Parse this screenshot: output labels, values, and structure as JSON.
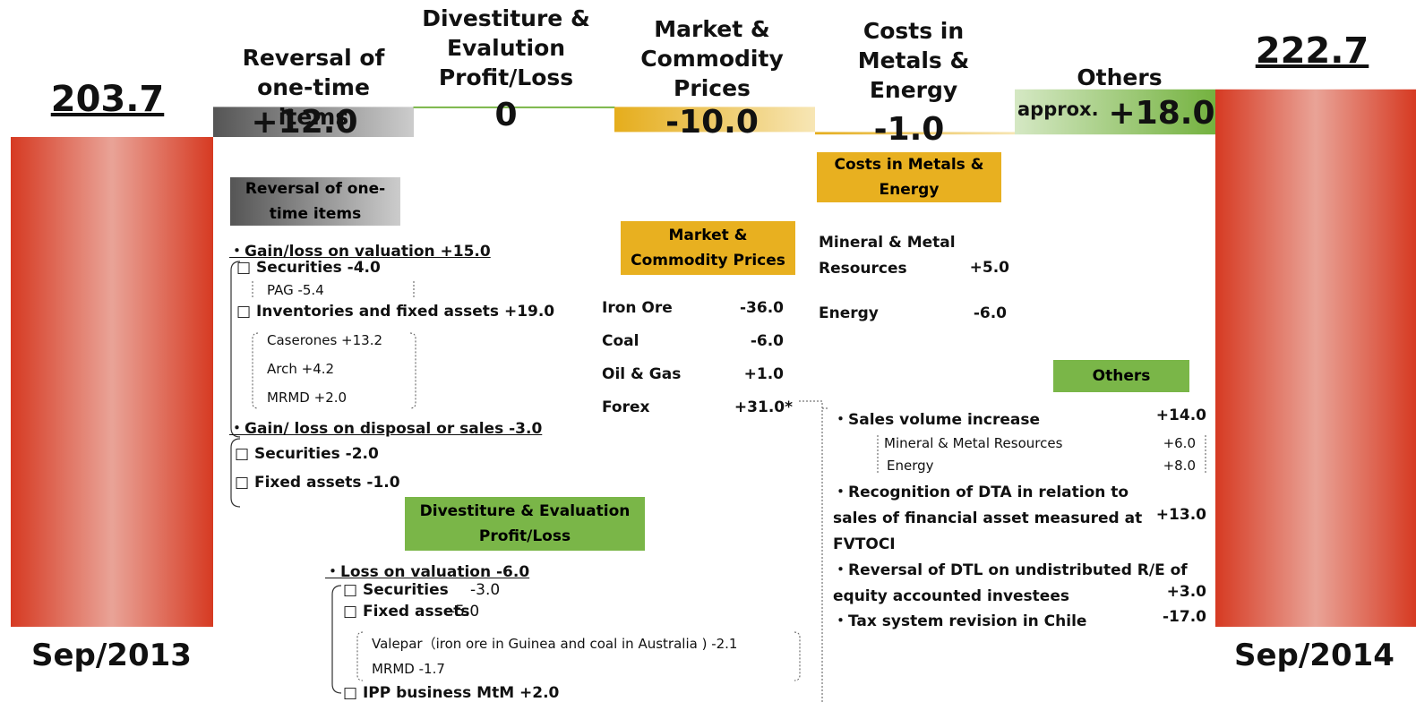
{
  "chart_data": {
    "type": "waterfall",
    "categories": [
      "Sep/2013",
      "Reversal of one-time items",
      "Divestiture & Evalution Profit/Loss",
      "Market & Commodity Prices",
      "Costs in Metals & Energy",
      "Others",
      "Sep/2014"
    ],
    "values": [
      203.7,
      12.0,
      0,
      -10.0,
      -1.0,
      18.0,
      222.7
    ],
    "value_labels": [
      "203.7",
      "+12.0",
      "0",
      "-10.0",
      "-1.0",
      "+18.0",
      "222.7"
    ],
    "value_prefix_others": "approx.",
    "colors": [
      "#d63a22",
      "#6b6b6b",
      "#7ab648",
      "#e8b020",
      "#e8b020",
      "#7ab648",
      "#d63a22"
    ]
  },
  "reversal": {
    "heading": "Reversal of one-time items",
    "lines": [
      "・Gain/loss on valuation +15.0",
      "□ Securities -4.0",
      "PAG  -5.4",
      "□ Inventories and fixed assets  +19.0",
      "Caserones  +13.2",
      "Arch  +4.2",
      "MRMD +2.0",
      "・Gain/ loss on disposal or sales -3.0",
      "□ Securities -2.0",
      "□ Fixed assets  -1.0"
    ]
  },
  "divestiture": {
    "heading": "Divestiture & Evaluation Profit/Loss",
    "lines": [
      "・Loss on valuation -6.0",
      "□ Securities",
      "-3.0",
      "□ Fixed assets",
      "-5.0",
      "Valepar（iron ore in Guinea and coal in Australia ) -2.1",
      "MRMD -1.7",
      "□ IPP business MtM  +2.0"
    ]
  },
  "market": {
    "heading": "Market & Commodity Prices",
    "rows": [
      [
        "Iron Ore",
        "-36.0"
      ],
      [
        "Coal",
        "-6.0"
      ],
      [
        "Oil & Gas",
        "+1.0"
      ],
      [
        "Forex",
        "+31.0*"
      ]
    ]
  },
  "costs": {
    "heading": "Costs in Metals & Energy",
    "rows": [
      [
        "Mineral & Metal Resources",
        "+5.0"
      ],
      [
        "Energy",
        "-6.0"
      ]
    ]
  },
  "others": {
    "heading": "Others",
    "rows": [
      [
        "・Sales volume increase",
        "+14.0"
      ],
      [
        "Mineral & Metal Resources",
        "+6.0"
      ],
      [
        "Energy",
        "+8.0"
      ],
      [
        "・Recognition of DTA in relation to sales of financial asset measured at FVTOCI",
        "+13.0"
      ],
      [
        "・Reversal of DTL on undistributed R/E of equity accounted investees",
        "+3.0"
      ],
      [
        "・Tax system revision in Chile",
        "-17.0"
      ]
    ]
  }
}
